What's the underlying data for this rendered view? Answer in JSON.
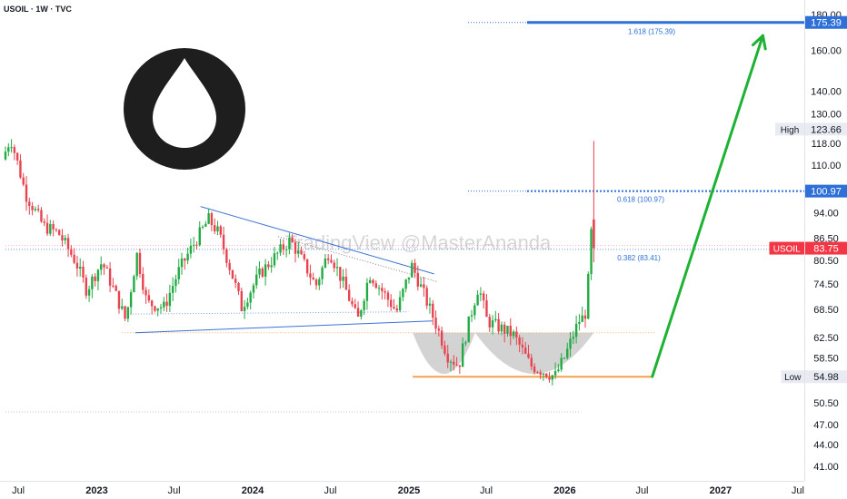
{
  "header": {
    "symbol_line": "USOIL · 1W · TVC"
  },
  "watermark": "TradingView @MasterAnanda",
  "logo": {
    "name": "oil-drop-logo"
  },
  "colors": {
    "up": "#22ab43",
    "down": "#e8434e",
    "triangle": "#3d72d6",
    "orange": "#f5a04a",
    "arrow": "#1db233",
    "fib_blue": "#2e6fd8",
    "price_tag": "#f23645"
  },
  "chart_data": {
    "type": "candlestick",
    "timeframe": "1W",
    "xlim": [
      "2022-06-01",
      "2027-08-01"
    ],
    "ylim": [
      38,
      185
    ],
    "y_scale": "log",
    "y_ticks": [
      180.0,
      160.0,
      140.0,
      130.0,
      118.0,
      110.0,
      94.0,
      86.5,
      80.5,
      74.5,
      68.5,
      62.5,
      58.5,
      50.5,
      47.0,
      44.0,
      41.0
    ],
    "x_ticks": [
      {
        "label": "Jul",
        "date": "2022-07-01",
        "bold": false
      },
      {
        "label": "2023",
        "date": "2023-01-01",
        "bold": true
      },
      {
        "label": "Jul",
        "date": "2023-07-01",
        "bold": false
      },
      {
        "label": "2024",
        "date": "2024-01-01",
        "bold": true
      },
      {
        "label": "Jul",
        "date": "2024-07-01",
        "bold": false
      },
      {
        "label": "2025",
        "date": "2025-01-01",
        "bold": true
      },
      {
        "label": "Jul",
        "date": "2025-07-01",
        "bold": false
      },
      {
        "label": "2026",
        "date": "2026-01-01",
        "bold": true
      },
      {
        "label": "Jul",
        "date": "2026-07-01",
        "bold": false
      },
      {
        "label": "2027",
        "date": "2027-01-01",
        "bold": true
      },
      {
        "label": "Jul",
        "date": "2027-07-01",
        "bold": false
      }
    ],
    "price_waypoints": [
      [
        "2022-06-01",
        112
      ],
      [
        "2022-06-20",
        120
      ],
      [
        "2022-07-25",
        100
      ],
      [
        "2022-09-05",
        90
      ],
      [
        "2022-10-10",
        88
      ],
      [
        "2022-11-20",
        80
      ],
      [
        "2022-12-15",
        73
      ],
      [
        "2023-01-20",
        80
      ],
      [
        "2023-03-17",
        66
      ],
      [
        "2023-04-12",
        82
      ],
      [
        "2023-05-05",
        70
      ],
      [
        "2023-06-15",
        69
      ],
      [
        "2023-07-20",
        78
      ],
      [
        "2023-09-27",
        92
      ],
      [
        "2023-10-20",
        88
      ],
      [
        "2023-12-13",
        69
      ],
      [
        "2024-01-25",
        77
      ],
      [
        "2024-04-05",
        86
      ],
      [
        "2024-06-04",
        74
      ],
      [
        "2024-07-05",
        83
      ],
      [
        "2024-09-10",
        66
      ],
      [
        "2024-10-08",
        77
      ],
      [
        "2024-12-10",
        68
      ],
      [
        "2025-01-15",
        79
      ],
      [
        "2025-02-20",
        70
      ],
      [
        "2025-04-08",
        59
      ],
      [
        "2025-05-05",
        57
      ],
      [
        "2025-06-20",
        74
      ],
      [
        "2025-07-10",
        66
      ],
      [
        "2025-09-10",
        63
      ],
      [
        "2025-10-20",
        57
      ],
      [
        "2025-12-16",
        55
      ],
      [
        "2026-01-10",
        59
      ],
      [
        "2026-02-10",
        66
      ],
      [
        "2026-02-24",
        67
      ],
      [
        "2026-03-03",
        72
      ],
      [
        "2026-03-09",
        92
      ],
      [
        "2026-03-13",
        84
      ]
    ],
    "last_candle": {
      "date": "2026-03-10",
      "open": 92,
      "high": 119,
      "low": 80,
      "close": 83.75
    },
    "levels": [
      {
        "name": "fib-1618",
        "label": "1.618 (175.39)",
        "value": 175.39
      },
      {
        "name": "fib-0618",
        "label": "0.618 (100.97)",
        "value": 100.97
      },
      {
        "name": "fib-0382",
        "label": "0.382 (83.41)",
        "value": 83.41
      },
      {
        "name": "low",
        "label": "Low",
        "value": 54.98
      },
      {
        "name": "high",
        "label": "High",
        "value": 123.66
      }
    ],
    "price_labels": [
      {
        "name": "tag-175",
        "text": "175.39",
        "value": 175.39,
        "style": "blue"
      },
      {
        "name": "tag-high",
        "title": "High",
        "text": "123.66",
        "value": 123.66,
        "style": "grey"
      },
      {
        "name": "tag-101",
        "text": "100.97",
        "value": 100.97,
        "style": "blue"
      },
      {
        "name": "tag-usoil",
        "title": "USOIL",
        "text": "83.75",
        "value": 83.75,
        "style": "red"
      },
      {
        "name": "tag-low",
        "title": "Low",
        "text": "54.98",
        "value": 54.98,
        "style": "grey"
      }
    ],
    "triangle": {
      "upper": [
        [
          "2023-09-01",
          96
        ],
        [
          "2025-03-01",
          77
        ]
      ],
      "lower": [
        [
          "2023-04-01",
          63.5
        ],
        [
          "2025-02-25",
          66
        ]
      ],
      "upper_dotted": [
        [
          "2024-03-01",
          87
        ],
        [
          "2025-03-10",
          75
        ]
      ],
      "lower_dotted": [
        [
          "2023-03-20",
          67.5
        ],
        [
          "2024-12-31",
          68
        ]
      ]
    },
    "orange_lines": [
      {
        "name": "neckline",
        "value": 63.5,
        "from": "2023-03-01",
        "to": "2026-07-31",
        "dotted": true
      },
      {
        "name": "bottom-line",
        "value": 54.98,
        "from": "2025-01-10",
        "to": "2026-07-25",
        "dotted": false
      }
    ],
    "cups": [
      {
        "from": "2025-01-10",
        "to": "2025-06-05",
        "top": 63.5,
        "bottom": 55.5
      },
      {
        "from": "2025-06-05",
        "to": "2026-03-10",
        "top": 63.5,
        "bottom": 55.5
      }
    ],
    "arrow": {
      "from": [
        "2026-07-25",
        55
      ],
      "to": [
        "2027-04-10",
        168
      ]
    },
    "guide_lines": [
      {
        "value": 84.5,
        "from": "2022-06-01",
        "to": "2027-08-01"
      },
      {
        "value": 49.0,
        "from": "2022-06-01",
        "to": "2026-02-08"
      }
    ]
  }
}
